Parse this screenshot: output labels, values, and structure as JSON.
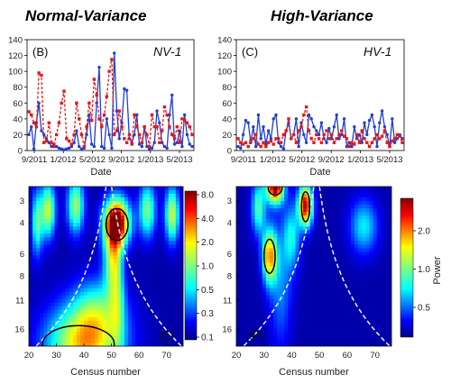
{
  "titles": {
    "left": "Normal-Variance",
    "right": "High-Variance"
  },
  "colors": {
    "blue_series": "#1f3fd6",
    "red_series": "#e01b1b"
  },
  "chart_data": [
    {
      "type": "line",
      "panel": "(B)",
      "tag": "NV-1",
      "xlabel": "Date",
      "ylabel": "",
      "xticks": [
        "9/2011",
        "1/2012",
        "5/2012",
        "9/2012",
        "1/2013",
        "5/2013"
      ],
      "yticks": [
        "0",
        "20",
        "40",
        "60",
        "80",
        "100",
        "120",
        "140"
      ],
      "ylim": [
        0,
        140
      ],
      "grid": false,
      "series": [
        {
          "color": "blue",
          "style": "solid",
          "values": [
            20,
            30,
            2,
            35,
            60,
            25,
            20,
            15,
            10,
            5,
            8,
            5,
            3,
            2,
            1,
            2,
            3,
            5,
            10,
            25,
            5,
            2,
            3,
            20,
            45,
            8,
            5,
            60,
            105,
            5,
            3,
            40,
            20,
            3,
            123,
            50,
            15,
            35,
            78,
            76,
            15,
            10,
            20,
            45,
            8,
            5,
            30,
            5,
            2,
            3,
            10,
            50,
            35,
            10,
            5,
            3,
            45,
            70,
            8,
            10,
            25,
            5,
            45,
            20,
            8,
            5
          ]
        },
        {
          "color": "red",
          "style": "dashed",
          "values": [
            49,
            45,
            35,
            30,
            98,
            95,
            10,
            12,
            35,
            10,
            5,
            20,
            35,
            60,
            75,
            15,
            12,
            8,
            20,
            60,
            40,
            20,
            5,
            30,
            60,
            38,
            90,
            70,
            40,
            30,
            45,
            68,
            100,
            115,
            20,
            25,
            50,
            30,
            15,
            10,
            20,
            8,
            45,
            30,
            20,
            10,
            30,
            20,
            5,
            45,
            30,
            30,
            10,
            25,
            55,
            45,
            30,
            20,
            15,
            30,
            10,
            40,
            38,
            35,
            30,
            20
          ]
        }
      ]
    },
    {
      "type": "line",
      "panel": "(C)",
      "tag": "HV-1",
      "xlabel": "Date",
      "ylabel": "",
      "xticks": [
        "9/2011",
        "1/2012",
        "5/2012",
        "9/2012",
        "1/2013",
        "5/2013"
      ],
      "yticks": [
        "0",
        "20",
        "40",
        "60",
        "80",
        "100",
        "120",
        "140"
      ],
      "ylim": [
        0,
        140
      ],
      "grid": false,
      "series": [
        {
          "color": "blue",
          "style": "solid",
          "values": [
            5,
            3,
            20,
            38,
            35,
            10,
            30,
            5,
            45,
            15,
            30,
            8,
            25,
            15,
            40,
            45,
            10,
            5,
            2,
            25,
            35,
            15,
            20,
            40,
            5,
            35,
            20,
            10,
            45,
            40,
            30,
            25,
            20,
            35,
            15,
            10,
            28,
            15,
            30,
            45,
            15,
            20,
            40,
            5,
            10,
            5,
            30,
            15,
            20,
            10,
            35,
            20,
            38,
            45,
            30,
            5,
            35,
            50,
            30,
            20,
            5,
            40,
            10,
            15,
            20,
            15
          ]
        },
        {
          "color": "red",
          "style": "dashed",
          "values": [
            15,
            10,
            8,
            10,
            5,
            12,
            15,
            20,
            8,
            5,
            10,
            5,
            10,
            12,
            8,
            15,
            15,
            10,
            20,
            25,
            40,
            15,
            20,
            10,
            25,
            30,
            45,
            55,
            25,
            15,
            10,
            20,
            15,
            10,
            20,
            25,
            15,
            20,
            10,
            15,
            20,
            25,
            18,
            15,
            5,
            10,
            8,
            20,
            10,
            25,
            15,
            10,
            5,
            10,
            15,
            20,
            15,
            18,
            25,
            10,
            5,
            12,
            15,
            20,
            18,
            10
          ]
        }
      ]
    },
    {
      "type": "heatmap",
      "panel": "(E)",
      "xlabel": "Census number",
      "ylabel": "",
      "xticks": [
        "20",
        "30",
        "40",
        "50",
        "60",
        "70"
      ],
      "yticks": [
        "3",
        "4",
        "6",
        "8",
        "11",
        "16"
      ],
      "xlim": [
        20,
        76
      ],
      "colorbar_label": "",
      "colorbar_ticks": [
        "8.0",
        "4.0",
        "2.0",
        "1.0",
        "0.5",
        "0.3",
        "0.1"
      ],
      "colorscale": "jet",
      "peaks": [
        {
          "x": 52,
          "y": 4,
          "sx": 4.5,
          "sy": 0.42,
          "amp": 1.0
        },
        {
          "x": 40,
          "y": 19.5,
          "sx": 13,
          "sy": 0.7,
          "amp": 0.64
        },
        {
          "x": 27,
          "y": 3.4,
          "sx": 2.5,
          "sy": 0.5,
          "amp": 0.55
        },
        {
          "x": 37,
          "y": 3.2,
          "sx": 3,
          "sy": 0.5,
          "amp": 0.5
        },
        {
          "x": 72,
          "y": 3.6,
          "sx": 2.5,
          "sy": 0.5,
          "amp": 0.55
        },
        {
          "x": 63,
          "y": 3.4,
          "sx": 3,
          "sy": 0.5,
          "amp": 0.45
        },
        {
          "x": 23,
          "y": 4.0,
          "sx": 2,
          "sy": 0.6,
          "amp": 0.4
        },
        {
          "x": 50,
          "y": 6.2,
          "sx": 3,
          "sy": 0.7,
          "amp": 0.42
        },
        {
          "x": 52,
          "y": 9.5,
          "sx": 2.5,
          "sy": 1.2,
          "amp": 0.3
        },
        {
          "x": 45,
          "y": 12.5,
          "sx": 9,
          "sy": 0.6,
          "amp": 0.3
        }
      ],
      "contours": [
        {
          "x": 52,
          "y": 4.1,
          "rx": 4,
          "ry": 0.3
        },
        {
          "x": 38,
          "y": 19.5,
          "rx": 13,
          "ry": 0.35
        }
      ]
    },
    {
      "type": "heatmap",
      "panel": "(F)",
      "xlabel": "Census number",
      "ylabel": "Power",
      "xticks": [
        "20",
        "30",
        "40",
        "50",
        "60",
        "70"
      ],
      "yticks": [
        "3",
        "4",
        "6",
        "8",
        "11",
        "16"
      ],
      "xlim": [
        20,
        76
      ],
      "colorbar_label": "Power",
      "colorbar_ticks": [
        "2.0",
        "1.0",
        "0.5"
      ],
      "colorscale": "jet",
      "peaks": [
        {
          "x": 34,
          "y": 2.5,
          "sx": 3,
          "sy": 0.3,
          "amp": 1.0
        },
        {
          "x": 45,
          "y": 3.2,
          "sx": 2.5,
          "sy": 0.38,
          "amp": 0.92
        },
        {
          "x": 32,
          "y": 6.2,
          "sx": 2.5,
          "sy": 0.5,
          "amp": 0.68
        },
        {
          "x": 28,
          "y": 3.3,
          "sx": 2.5,
          "sy": 0.5,
          "amp": 0.4
        },
        {
          "x": 66,
          "y": 4.2,
          "sx": 5,
          "sy": 0.5,
          "amp": 0.3
        },
        {
          "x": 40,
          "y": 4.8,
          "sx": 3,
          "sy": 0.6,
          "amp": 0.3
        },
        {
          "x": 36,
          "y": 9.0,
          "sx": 4,
          "sy": 1.2,
          "amp": 0.2
        }
      ],
      "contours": [
        {
          "x": 34,
          "y": 2.55,
          "rx": 2.5,
          "ry": 0.13
        },
        {
          "x": 45,
          "y": 3.25,
          "rx": 1.5,
          "ry": 0.28
        },
        {
          "x": 32,
          "y": 6.2,
          "rx": 2,
          "ry": 0.32
        }
      ]
    }
  ]
}
